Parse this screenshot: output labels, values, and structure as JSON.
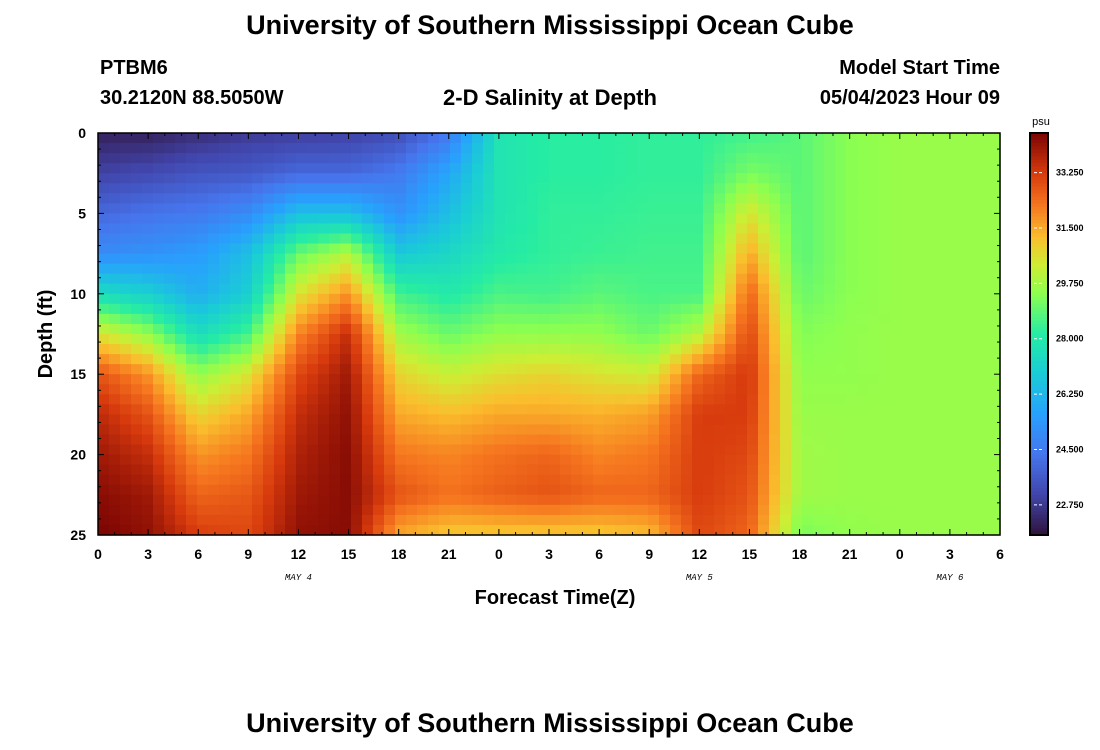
{
  "page": {
    "title": "University of Southern Mississippi Ocean Cube",
    "footer_title": "University of Southern Mississippi Ocean Cube",
    "station": "PTBM6",
    "location": "30.2120N  88.5050W",
    "subtitle": "2-D Salinity at Depth",
    "model_label": "Model Start Time",
    "model_time": "05/04/2023 Hour 09"
  },
  "chart_data": {
    "type": "heatmap",
    "title": "2-D Salinity at Depth",
    "xlabel": "Forecast Time(Z)",
    "ylabel": "Depth (ft)",
    "x_ticks": [
      "0",
      "3",
      "6",
      "9",
      "12",
      "15",
      "18",
      "21",
      "0",
      "3",
      "6",
      "9",
      "12",
      "15",
      "18",
      "21",
      "0",
      "3",
      "6"
    ],
    "x_range_hours": [
      0,
      54
    ],
    "date_labels": [
      {
        "hour": 12,
        "label": "MAY 4"
      },
      {
        "hour": 36,
        "label": "MAY 5"
      },
      {
        "hour": 51,
        "label": "MAY 6"
      }
    ],
    "y_ticks": [
      "0",
      "5",
      "10",
      "15",
      "20",
      "25"
    ],
    "y_range_ft": [
      0,
      25
    ],
    "colorbar": {
      "unit": "psu",
      "min": 21.8,
      "max": 34.5,
      "ticks": [
        "33.250",
        "31.500",
        "29.750",
        "28.000",
        "26.250",
        "24.500",
        "22.750"
      ],
      "tick_values": [
        33.25,
        31.5,
        29.75,
        28.0,
        26.25,
        24.5,
        22.75
      ]
    },
    "time_axis_hours": [
      0,
      3,
      6,
      9,
      12,
      15,
      18,
      21,
      24,
      27,
      30,
      33,
      36,
      39,
      42,
      45,
      48,
      51,
      54
    ],
    "depth_axis_ft": [
      0,
      2.5,
      5,
      7.5,
      10,
      12.5,
      15,
      17.5,
      20,
      22.5,
      25
    ],
    "salinity_grid": [
      [
        22.2,
        22.2,
        22.5,
        22.8,
        22.9,
        23.0,
        23.3,
        24.5,
        27.8,
        28.2,
        28.2,
        28.3,
        28.3,
        28.5,
        28.8,
        29.4,
        29.6,
        29.6,
        29.6
      ],
      [
        23.0,
        23.2,
        23.5,
        23.6,
        24.0,
        24.0,
        24.5,
        25.8,
        27.8,
        28.2,
        28.2,
        28.3,
        28.3,
        29.2,
        28.8,
        29.4,
        29.6,
        29.6,
        29.6
      ],
      [
        24.0,
        24.3,
        24.5,
        25.0,
        26.5,
        26.5,
        25.2,
        26.5,
        27.8,
        28.3,
        28.3,
        28.4,
        28.4,
        30.5,
        28.8,
        29.4,
        29.6,
        29.6,
        29.6
      ],
      [
        25.0,
        25.2,
        25.5,
        26.5,
        29.0,
        30.0,
        26.8,
        27.3,
        28.0,
        28.3,
        28.4,
        28.5,
        28.5,
        31.5,
        28.8,
        29.4,
        29.6,
        29.6,
        29.6
      ],
      [
        27.5,
        27.0,
        26.0,
        27.0,
        30.5,
        31.8,
        28.5,
        28.0,
        28.6,
        28.5,
        28.8,
        28.6,
        28.6,
        32.5,
        29.0,
        29.4,
        29.6,
        29.6,
        29.6
      ],
      [
        30.5,
        29.5,
        27.5,
        28.5,
        32.0,
        33.5,
        29.7,
        29.0,
        29.5,
        29.5,
        29.5,
        29.0,
        30.0,
        33.0,
        29.3,
        29.5,
        29.6,
        29.6,
        29.6
      ],
      [
        32.8,
        31.8,
        29.5,
        30.5,
        33.0,
        34.0,
        30.8,
        30.2,
        30.6,
        30.8,
        30.5,
        30.3,
        32.5,
        33.3,
        29.5,
        29.5,
        29.6,
        29.6,
        29.6
      ],
      [
        33.6,
        32.8,
        30.8,
        31.5,
        33.5,
        34.2,
        31.5,
        31.2,
        31.5,
        31.5,
        31.4,
        31.6,
        33.2,
        33.2,
        29.6,
        29.6,
        29.6,
        29.6,
        29.6
      ],
      [
        34.0,
        33.5,
        31.8,
        32.2,
        33.8,
        34.3,
        32.2,
        32.0,
        32.3,
        32.5,
        32.0,
        32.2,
        33.2,
        33.0,
        29.7,
        29.6,
        29.6,
        29.6,
        29.6
      ],
      [
        34.3,
        34.0,
        32.5,
        32.7,
        34.0,
        34.3,
        32.8,
        32.3,
        32.6,
        32.8,
        32.5,
        32.5,
        33.2,
        32.8,
        29.7,
        29.6,
        29.6,
        29.6,
        29.6
      ],
      [
        34.5,
        34.2,
        33.2,
        33.0,
        34.2,
        34.3,
        31.5,
        31.0,
        31.0,
        31.0,
        31.0,
        31.2,
        33.0,
        32.5,
        29.2,
        29.5,
        29.6,
        29.6,
        29.6
      ]
    ]
  }
}
